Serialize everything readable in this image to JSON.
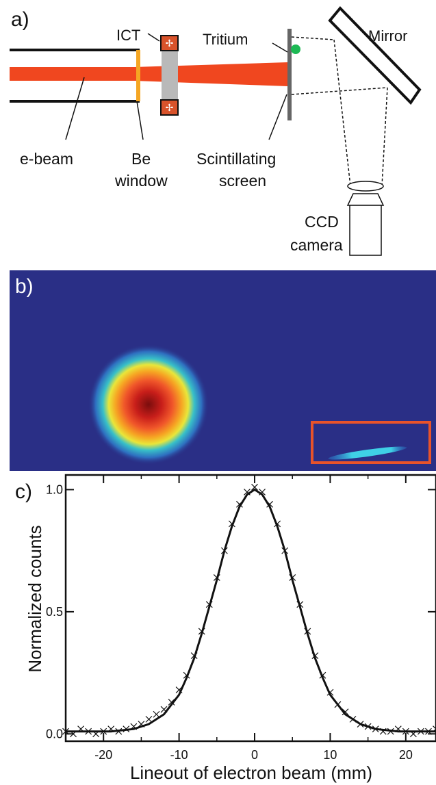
{
  "panel_a": {
    "label": "a)",
    "components": {
      "ebeam": "e-beam",
      "be_window_1": "Be",
      "be_window_2": "window",
      "ict": "ICT",
      "tritium": "Tritium",
      "mirror": "Mirror",
      "screen_1": "Scintillating",
      "screen_2": "screen",
      "ccd_1": "CCD",
      "ccd_2": "camera"
    },
    "colors": {
      "beam": "#f0471f",
      "be_window": "#f5a623",
      "tritium": "#1db954",
      "ict_core": "#d9532b",
      "ict_body": "#b9b9b9"
    }
  },
  "panel_b": {
    "label": "b)",
    "colors": {
      "background": "#2a2f86",
      "roi_box": "#e8532a"
    },
    "description_icons": [
      "beam-spot",
      "tritium-streak",
      "roi-box"
    ]
  },
  "panel_c": {
    "label": "c)"
  },
  "chart_data": {
    "type": "scatter",
    "xlabel": "Lineout of electron beam (mm)",
    "ylabel": "Normalized counts",
    "xlim": [
      -25,
      24
    ],
    "ylim": [
      -0.03,
      1.06
    ],
    "xticks": [
      -20,
      -10,
      0,
      10,
      20
    ],
    "xtick_labels": [
      "-20",
      "-10",
      "0",
      "10",
      "20"
    ],
    "yticks": [
      0.0,
      0.5,
      1.0
    ],
    "ytick_labels": [
      "0.0",
      "0.5",
      "1.0"
    ],
    "grid": false,
    "series": [
      {
        "kind": "points",
        "marker": "x",
        "x": [
          -25,
          -24,
          -23,
          -22,
          -21,
          -20,
          -19,
          -18,
          -17,
          -16,
          -15,
          -14,
          -13,
          -12,
          -11,
          -10,
          -9,
          -8,
          -7,
          -6,
          -5,
          -4,
          -3,
          -2,
          -1,
          0,
          1,
          2,
          3,
          4,
          5,
          6,
          7,
          8,
          9,
          10,
          11,
          12,
          13,
          14,
          15,
          16,
          17,
          18,
          19,
          20,
          21,
          22,
          23,
          24
        ],
        "y": [
          0.01,
          0.0,
          0.02,
          0.01,
          0.0,
          0.01,
          0.02,
          0.01,
          0.02,
          0.03,
          0.04,
          0.06,
          0.08,
          0.1,
          0.13,
          0.18,
          0.24,
          0.32,
          0.42,
          0.53,
          0.64,
          0.75,
          0.86,
          0.94,
          0.99,
          1.01,
          0.99,
          0.94,
          0.86,
          0.75,
          0.64,
          0.53,
          0.42,
          0.32,
          0.24,
          0.17,
          0.12,
          0.09,
          0.06,
          0.04,
          0.03,
          0.02,
          0.01,
          0.01,
          0.02,
          0.01,
          0.0,
          0.01,
          0.01,
          0.02
        ]
      },
      {
        "kind": "fit",
        "x": [
          -25,
          -22,
          -19,
          -16,
          -14,
          -12,
          -10,
          -9,
          -8,
          -7,
          -6,
          -5,
          -4,
          -3,
          -2,
          -1,
          0,
          1,
          2,
          3,
          4,
          5,
          6,
          7,
          8,
          9,
          10,
          12,
          14,
          16,
          19,
          22,
          24
        ],
        "y": [
          0.01,
          0.01,
          0.01,
          0.02,
          0.04,
          0.08,
          0.16,
          0.23,
          0.31,
          0.41,
          0.52,
          0.63,
          0.75,
          0.85,
          0.93,
          0.98,
          1.0,
          0.98,
          0.93,
          0.85,
          0.75,
          0.63,
          0.52,
          0.41,
          0.31,
          0.23,
          0.16,
          0.08,
          0.04,
          0.02,
          0.01,
          0.01,
          0.01
        ]
      }
    ]
  }
}
